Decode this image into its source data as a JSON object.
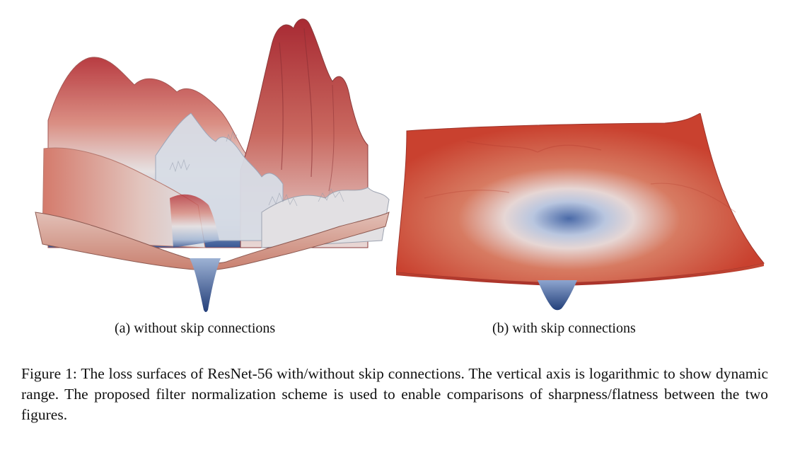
{
  "figure": {
    "panels": [
      {
        "id": "a",
        "label": "(a)",
        "caption": "without skip connections",
        "surface": "chaotic loss surface with sharp peaks and a narrow minimum",
        "colors": {
          "high": "#b8343b",
          "mid": "#d8dde6",
          "low": "#2f4f8f"
        }
      },
      {
        "id": "b",
        "label": "(b)",
        "caption": "with skip connections",
        "surface": "smooth convex loss surface with a single wide basin",
        "colors": {
          "high": "#c94433",
          "mid": "#dfe2ea",
          "low": "#3b5a9a"
        }
      }
    ],
    "caption": "Figure 1: The loss surfaces of ResNet-56 with/without skip connections. The vertical axis is logarithmic to show dynamic range. The proposed filter normalization scheme is used to enable comparisons of sharpness/flatness between the two figures."
  }
}
